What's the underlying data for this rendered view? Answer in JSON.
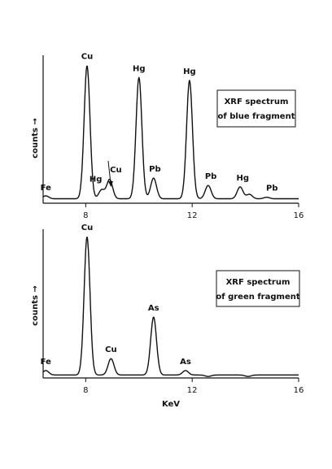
{
  "chart_data": [
    {
      "type": "line",
      "title": "XRF spectrum of blue fragment",
      "title_lines": [
        "XRF spectrum",
        "of blue fragment"
      ],
      "xlabel": "",
      "ylabel": "counts →",
      "xlim": [
        6.4,
        16
      ],
      "ylim": [
        0,
        1.0
      ],
      "xticks": [
        8,
        12,
        16
      ],
      "grid": false,
      "baseline": 0.03,
      "series": [
        {
          "peaks": [
            {
              "x": 6.5,
              "y": 0.05
            },
            {
              "x": 8.05,
              "y": 0.93
            },
            {
              "x": 8.6,
              "y": 0.09
            },
            {
              "x": 8.9,
              "y": 0.16
            },
            {
              "x": 10.0,
              "y": 0.85
            },
            {
              "x": 10.55,
              "y": 0.17
            },
            {
              "x": 11.9,
              "y": 0.83
            },
            {
              "x": 12.6,
              "y": 0.12
            },
            {
              "x": 13.8,
              "y": 0.11
            },
            {
              "x": 14.15,
              "y": 0.06
            },
            {
              "x": 14.8,
              "y": 0.04
            }
          ]
        }
      ],
      "annotations": [
        {
          "text": "Fe",
          "x": 6.5,
          "y": 0.05
        },
        {
          "text": "Cu",
          "x": 8.05,
          "y": 0.93
        },
        {
          "text": "Hg",
          "x": 8.5,
          "y": 0.09
        },
        {
          "text": "Cu",
          "x": 8.95,
          "y": 0.16
        },
        {
          "text": "Hg",
          "x": 10.0,
          "y": 0.85
        },
        {
          "text": "Pb",
          "x": 10.6,
          "y": 0.17
        },
        {
          "text": "Hg",
          "x": 11.9,
          "y": 0.83
        },
        {
          "text": "Pb",
          "x": 12.7,
          "y": 0.12
        },
        {
          "text": "Hg",
          "x": 13.9,
          "y": 0.11
        },
        {
          "text": "Pb",
          "x": 15.0,
          "y": 0.04
        }
      ]
    },
    {
      "type": "line",
      "title": "XRF spectrum of green fragment",
      "title_lines": [
        "XRF spectrum",
        "of green fragment"
      ],
      "xlabel": "KeV",
      "ylabel": "counts →",
      "xlim": [
        6.4,
        16
      ],
      "ylim": [
        0,
        1.0
      ],
      "xticks": [
        8,
        12,
        16
      ],
      "grid": false,
      "baseline": 0.02,
      "series": [
        {
          "peaks": [
            {
              "x": 6.5,
              "y": 0.05
            },
            {
              "x": 8.05,
              "y": 0.95
            },
            {
              "x": 8.95,
              "y": 0.13
            },
            {
              "x": 10.55,
              "y": 0.41
            },
            {
              "x": 11.75,
              "y": 0.05
            },
            {
              "x": 12.6,
              "y": 0.01
            },
            {
              "x": 14.1,
              "y": 0.01
            }
          ]
        }
      ],
      "annotations": [
        {
          "text": "Fe",
          "x": 6.5,
          "y": 0.05
        },
        {
          "text": "Cu",
          "x": 8.05,
          "y": 0.95
        },
        {
          "text": "Cu",
          "x": 8.95,
          "y": 0.13
        },
        {
          "text": "As",
          "x": 10.55,
          "y": 0.41
        },
        {
          "text": "As",
          "x": 11.75,
          "y": 0.05
        }
      ]
    }
  ]
}
